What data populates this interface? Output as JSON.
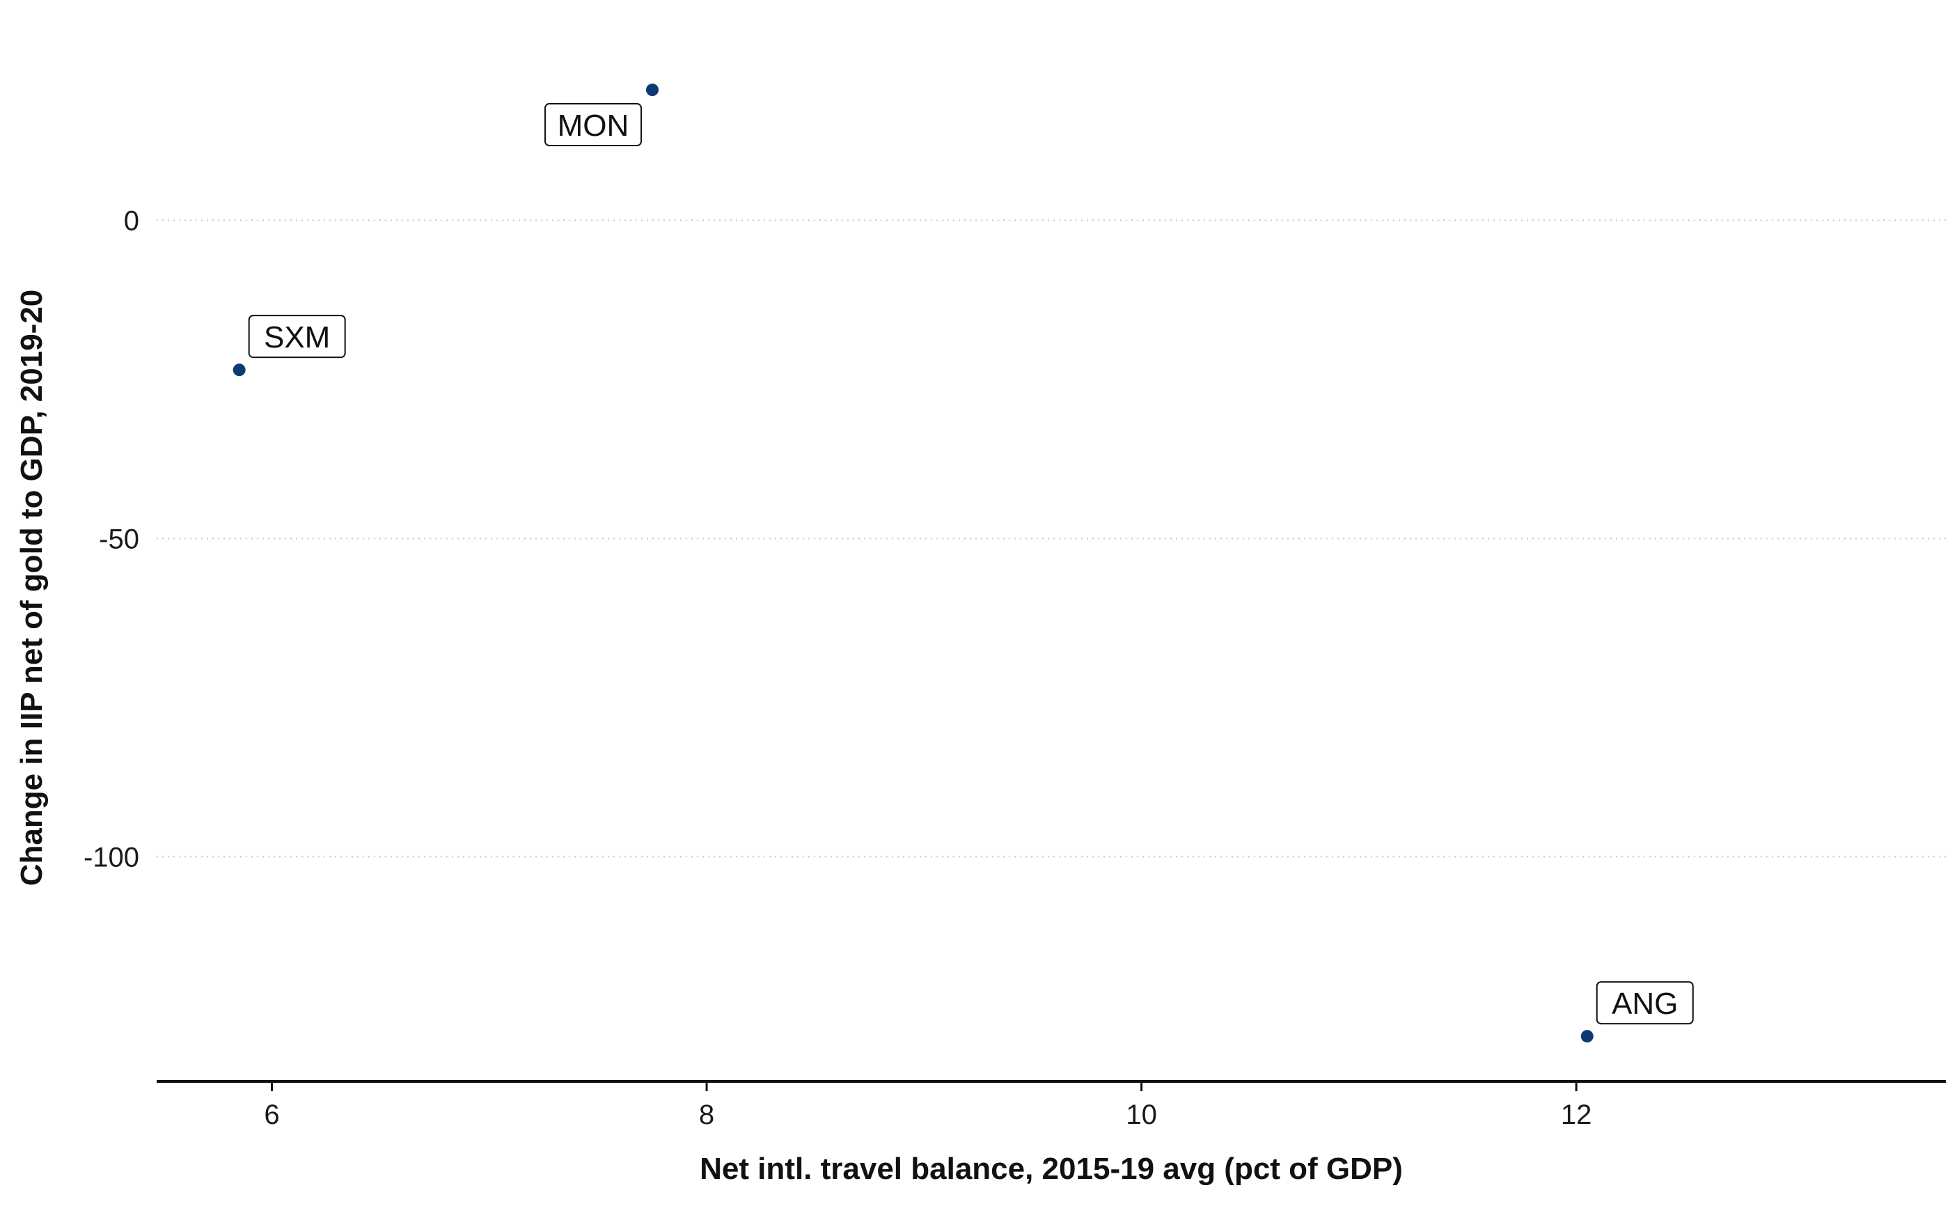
{
  "chart_data": {
    "type": "scatter",
    "title": "",
    "xlabel": "Net intl. travel balance, 2015-19 avg (pct of GDP)",
    "ylabel": "Change in IIP net of gold to GDP, 2019-20",
    "xlim": [
      5.47,
      13.7
    ],
    "ylim": [
      -135.3,
      28.6
    ],
    "x_ticks": [
      6,
      8,
      10,
      12
    ],
    "y_ticks": [
      0,
      -50,
      -100
    ],
    "grid": "horizontal dotted",
    "point_color": "#0b3a75",
    "points": [
      {
        "label": "MON",
        "x": 7.75,
        "y": 20.5
      },
      {
        "label": "SXM",
        "x": 5.85,
        "y": -23.5
      },
      {
        "label": "ANG",
        "x": 12.05,
        "y": -128.2
      }
    ]
  }
}
